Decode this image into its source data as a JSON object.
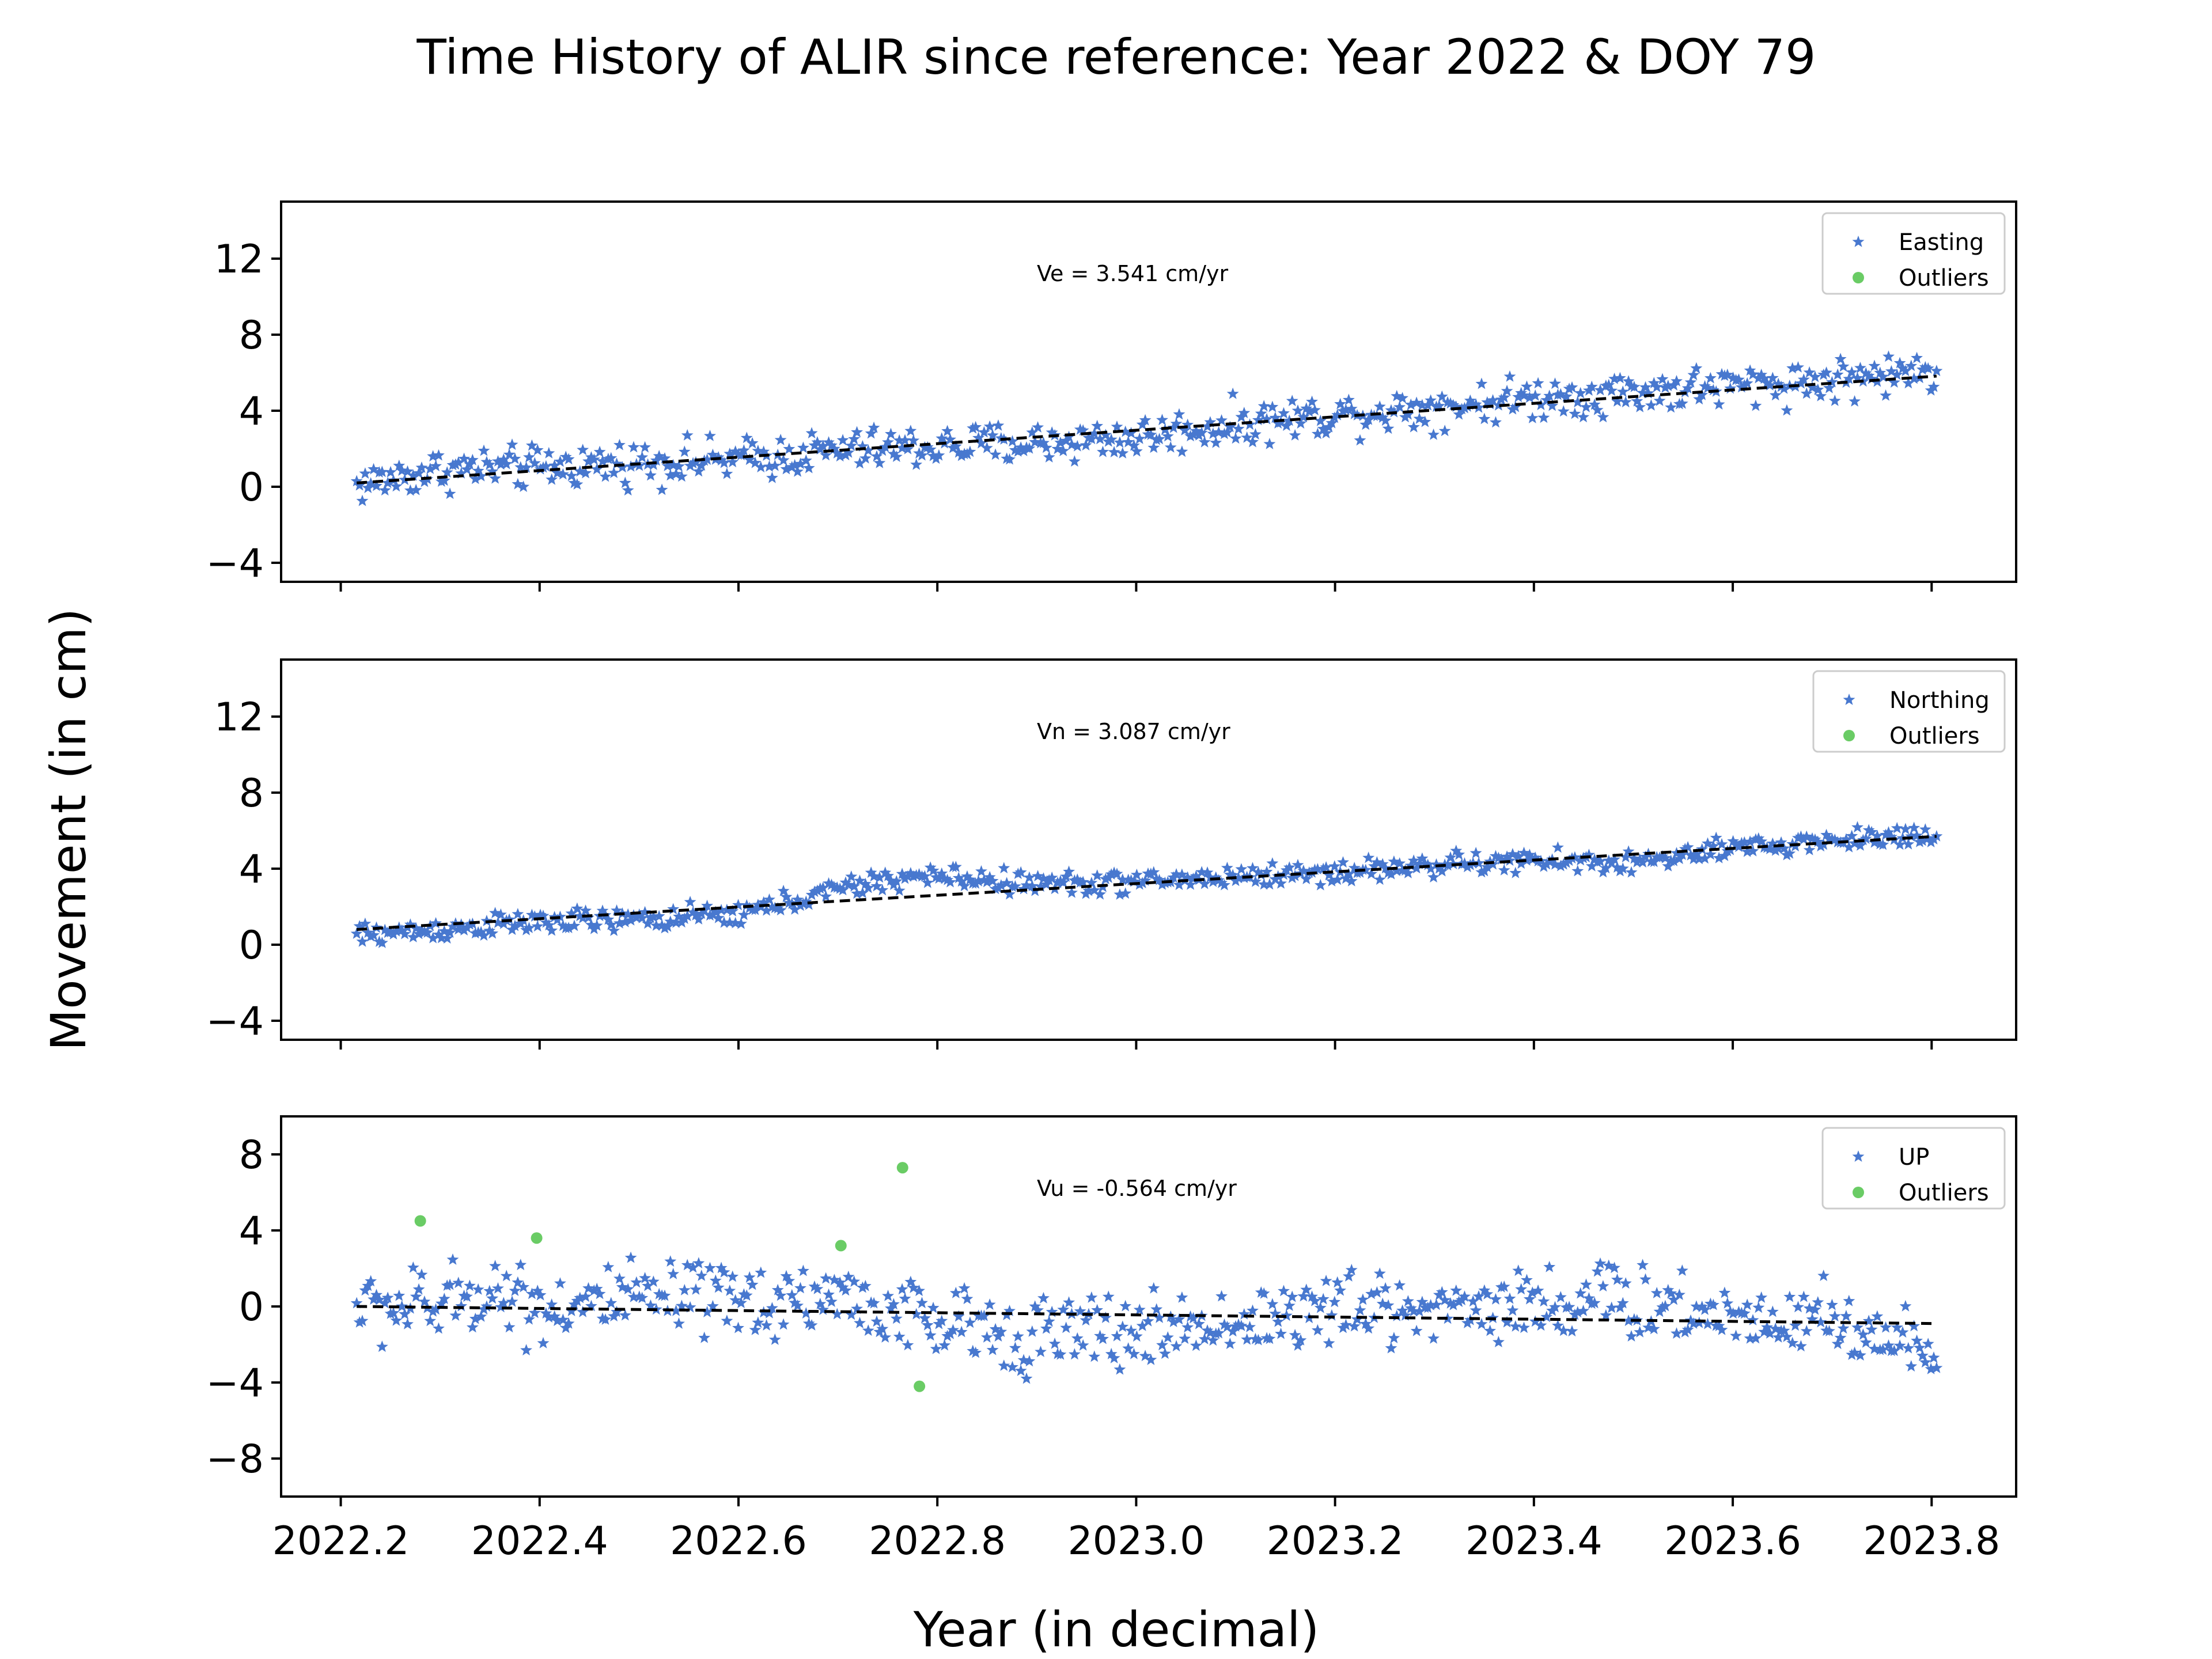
{
  "figure": {
    "title": "Time History of ALIR since reference: Year 2022 & DOY 79",
    "ylabel": "Movement (in cm)",
    "xlabel": "Year (in decimal)"
  },
  "colors": {
    "series": "#4878cf",
    "outliers": "#6acc65",
    "trend": "#000000"
  },
  "chart_data": [
    {
      "type": "scatter",
      "xlim": [
        2022.14,
        2023.885
      ],
      "ylim": [
        -5,
        15
      ],
      "yticks": [
        12,
        8,
        4,
        0,
        -4
      ],
      "xticks": [
        2022.2,
        2022.4,
        2022.6,
        2022.8,
        2023.0,
        2023.2,
        2023.4,
        2023.6,
        2023.8
      ],
      "x_range": [
        2022.216,
        2023.805
      ],
      "velocity_label": "Ve =  3.541 cm/yr",
      "legend": {
        "placement": "top-right",
        "series_label": "Easting",
        "outlier_label": "Outliers"
      },
      "trend": {
        "x": [
          2022.216,
          2023.805
        ],
        "y": [
          0.2,
          5.82
        ]
      },
      "profile": {
        "x": [
          2022.216,
          2022.3,
          2022.4,
          2022.5,
          2022.6,
          2022.7,
          2022.8,
          2022.9,
          2023.0,
          2023.1,
          2023.2,
          2023.3,
          2023.4,
          2023.5,
          2023.6,
          2023.7,
          2023.805
        ],
        "y": [
          0.1,
          0.9,
          1.0,
          1.3,
          1.4,
          1.9,
          2.1,
          2.3,
          2.6,
          3.3,
          3.8,
          4.2,
          4.7,
          5.0,
          5.3,
          5.6,
          6.1
        ]
      },
      "noise": 0.55,
      "outliers": []
    },
    {
      "type": "scatter",
      "xlim": [
        2022.14,
        2023.885
      ],
      "ylim": [
        -5,
        15
      ],
      "yticks": [
        12,
        8,
        4,
        0,
        -4
      ],
      "xticks": [
        2022.2,
        2022.4,
        2022.6,
        2022.8,
        2023.0,
        2023.2,
        2023.4,
        2023.6,
        2023.8
      ],
      "x_range": [
        2022.216,
        2023.805
      ],
      "velocity_label": "Vn =  3.087 cm/yr",
      "legend": {
        "placement": "top-right",
        "series_label": "Northing",
        "outlier_label": "Outliers"
      },
      "trend": {
        "x": [
          2022.216,
          2023.805
        ],
        "y": [
          0.8,
          5.7
        ]
      },
      "profile": {
        "x": [
          2022.216,
          2022.3,
          2022.4,
          2022.5,
          2022.6,
          2022.7,
          2022.76,
          2022.8,
          2022.9,
          2023.0,
          2023.1,
          2023.2,
          2023.3,
          2023.4,
          2023.5,
          2023.6,
          2023.7,
          2023.805
        ],
        "y": [
          0.5,
          0.8,
          1.2,
          1.3,
          1.6,
          2.9,
          3.5,
          3.6,
          3.2,
          3.3,
          3.6,
          3.8,
          4.2,
          4.4,
          4.3,
          5.0,
          5.5,
          5.8
        ]
      },
      "noise": 0.3,
      "outliers": []
    },
    {
      "type": "scatter",
      "xlim": [
        2022.14,
        2023.885
      ],
      "ylim": [
        -10,
        10
      ],
      "yticks": [
        8,
        4,
        0,
        -4,
        -8
      ],
      "xticks": [
        2022.2,
        2022.4,
        2022.6,
        2022.8,
        2023.0,
        2023.2,
        2023.4,
        2023.6,
        2023.8
      ],
      "xtick_labels": [
        "2022.2",
        "2022.4",
        "2022.6",
        "2022.8",
        "2023.0",
        "2023.2",
        "2023.4",
        "2023.6",
        "2023.8"
      ],
      "x_range": [
        2022.216,
        2023.805
      ],
      "velocity_label": "Vu = -0.564 cm/yr",
      "legend": {
        "placement": "top-right",
        "series_label": "UP",
        "outlier_label": "Outliers"
      },
      "trend": {
        "x": [
          2022.216,
          2023.805
        ],
        "y": [
          0.0,
          -0.9
        ]
      },
      "profile": {
        "x": [
          2022.216,
          2022.3,
          2022.35,
          2022.4,
          2022.5,
          2022.6,
          2022.7,
          2022.76,
          2022.8,
          2022.9,
          2023.0,
          2023.1,
          2023.2,
          2023.3,
          2023.4,
          2023.5,
          2023.6,
          2023.7,
          2023.76,
          2023.805
        ],
        "y": [
          0.0,
          0.0,
          1.0,
          0.0,
          0.3,
          0.2,
          0.6,
          -0.4,
          -1.0,
          -1.4,
          -1.4,
          -0.8,
          -0.2,
          0.0,
          0.2,
          0.3,
          -0.5,
          -0.5,
          -2.0,
          -2.6
        ]
      },
      "noise": 1.0,
      "outliers": [
        {
          "x": 2022.28,
          "y": 4.5
        },
        {
          "x": 2022.397,
          "y": 3.6
        },
        {
          "x": 2022.703,
          "y": 3.2
        },
        {
          "x": 2022.765,
          "y": 7.3
        },
        {
          "x": 2022.782,
          "y": -4.2
        }
      ]
    }
  ]
}
